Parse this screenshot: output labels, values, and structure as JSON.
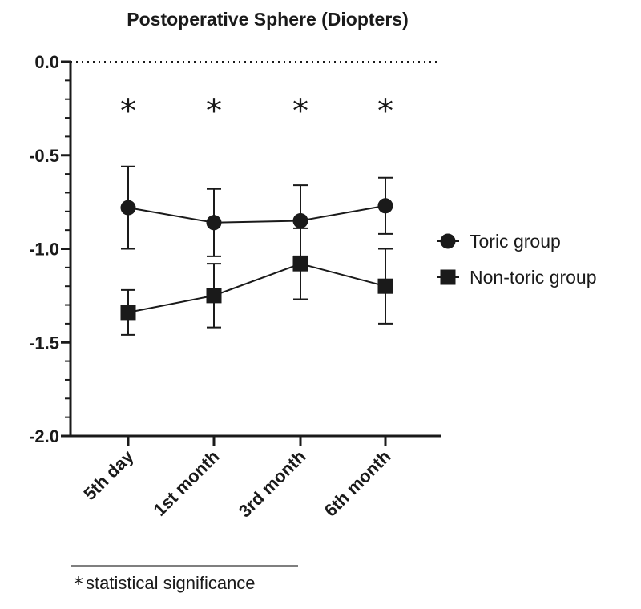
{
  "chart_data": {
    "type": "line",
    "title": "Postoperative Sphere (Diopters)",
    "xlabel": "",
    "ylabel": "",
    "categories": [
      "5th day",
      "1st month",
      "3rd month",
      "6th month"
    ],
    "ylim": [
      -2.0,
      0.0
    ],
    "yticks": [
      "0.0",
      "-0.5",
      "-1.0",
      "-1.5",
      "-2.0"
    ],
    "ytick_values": [
      0.0,
      -0.5,
      -1.0,
      -1.5,
      -2.0
    ],
    "series": [
      {
        "name": "Toric group",
        "marker": "circle",
        "values": [
          -0.78,
          -0.86,
          -0.85,
          -0.77
        ],
        "error_upper": [
          -0.56,
          -0.68,
          -0.66,
          -0.62
        ],
        "error_lower": [
          -1.0,
          -1.04,
          -1.04,
          -0.92
        ]
      },
      {
        "name": "Non-toric group",
        "marker": "square",
        "values": [
          -1.34,
          -1.25,
          -1.08,
          -1.2
        ],
        "error_upper": [
          -1.22,
          -1.08,
          -0.89,
          -1.0
        ],
        "error_lower": [
          -1.46,
          -1.42,
          -1.27,
          -1.4
        ]
      }
    ],
    "significance_markers": [
      "*",
      "*",
      "*",
      "*"
    ],
    "reference_line": 0.0,
    "legend_position": "right",
    "footnote": {
      "symbol": "*",
      "text": "statistical significance"
    },
    "colors": {
      "ink": "#1a1a1a"
    }
  }
}
